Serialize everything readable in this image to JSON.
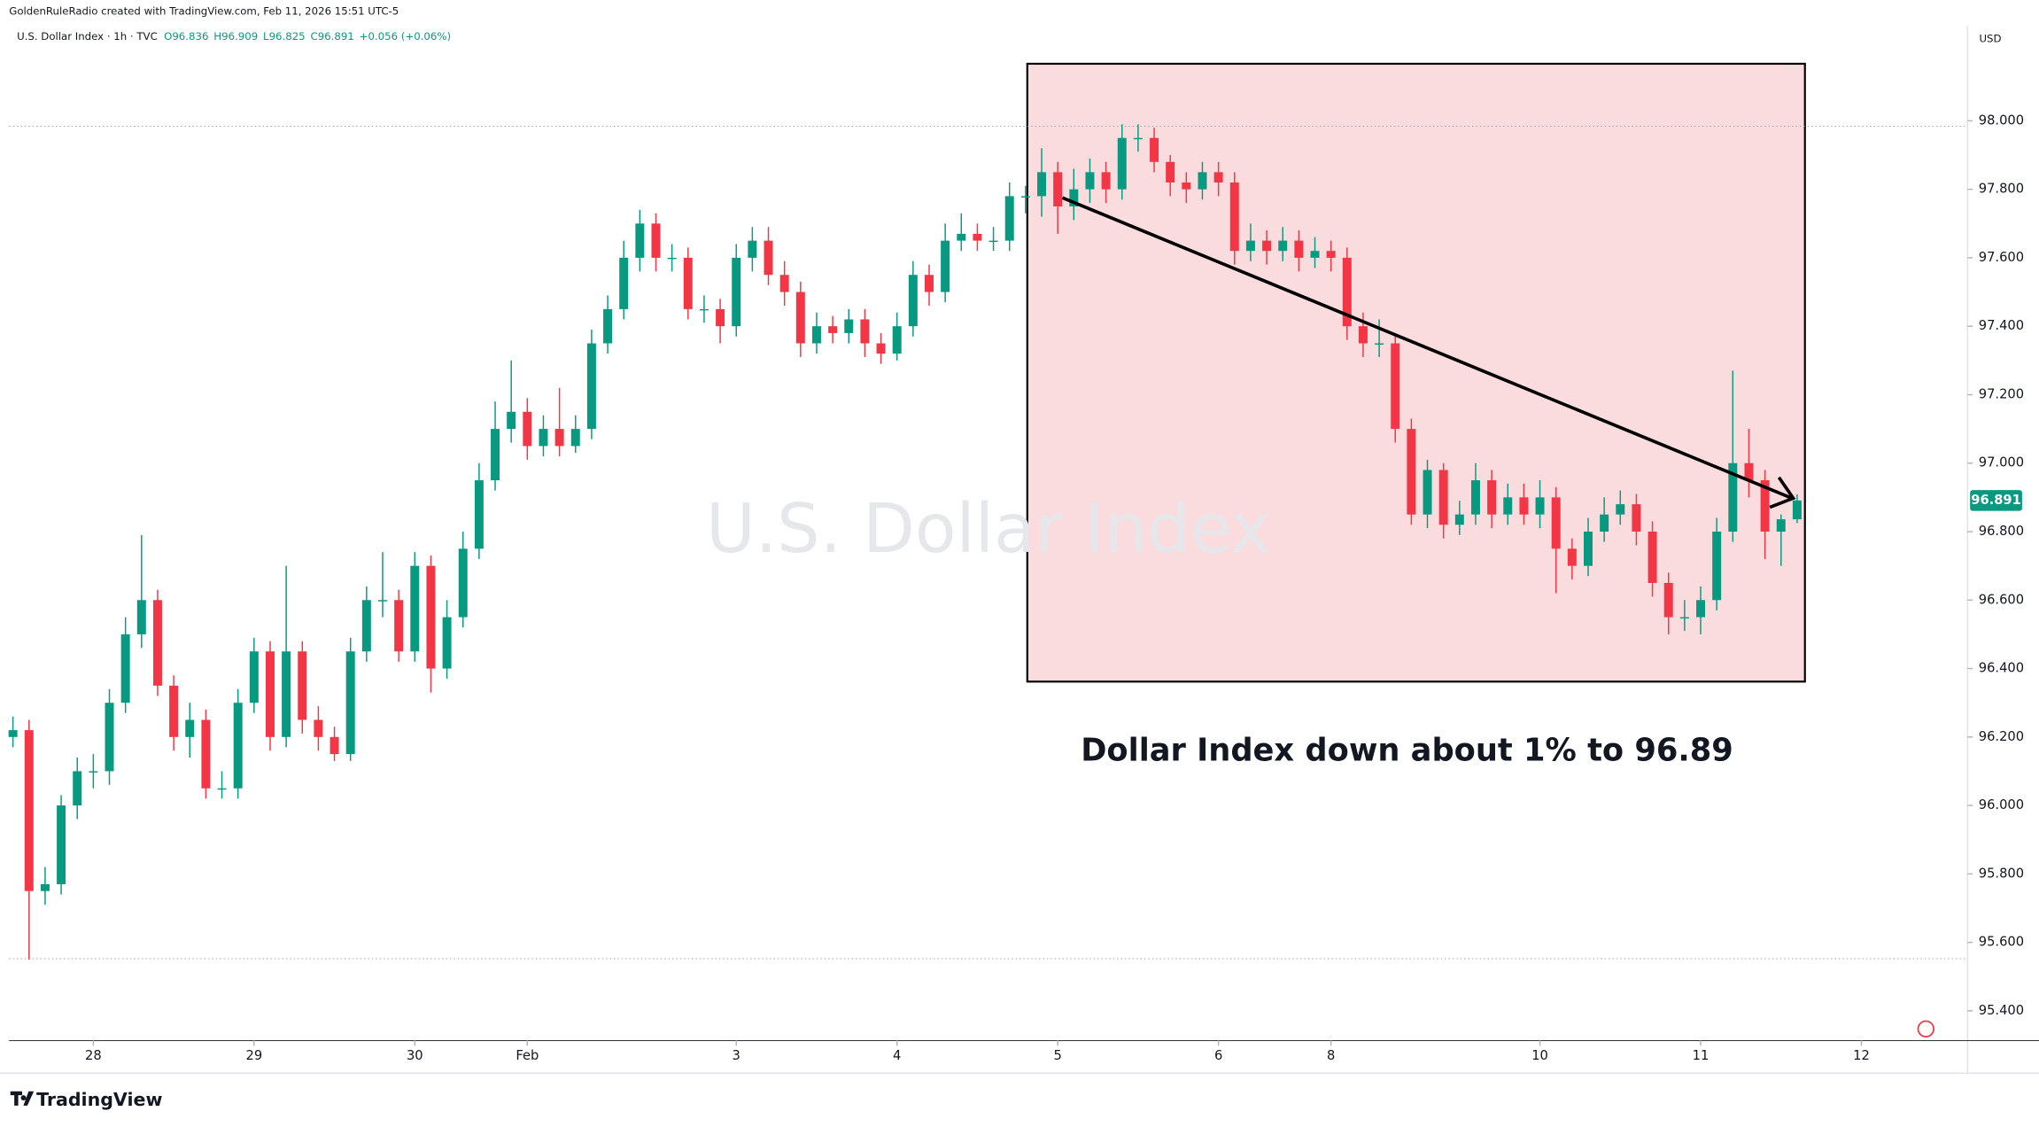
{
  "header": {
    "credit": "GoldenRuleRadio created with TradingView.com, Feb 11, 2026 15:51 UTC-5",
    "symbol": "U.S. Dollar Index · 1h · TVC",
    "ohlc": [
      "O96.836",
      "H96.909",
      "L96.825",
      "C96.891",
      "+0.056 (+0.06%)"
    ],
    "currency": "USD",
    "brand": "TradingView"
  },
  "chart_data": {
    "type": "candlestick",
    "watermark": "U.S. Dollar Index",
    "annotation": "Dollar Index down about 1% to 96.89",
    "up_color": "#089981",
    "down_color": "#f23645",
    "open": [
      96.2,
      96.22,
      95.75,
      95.77,
      96.0,
      96.1,
      96.1,
      96.3,
      96.5,
      96.6,
      96.35,
      96.2,
      96.25,
      96.05,
      96.05,
      96.3,
      96.45,
      96.2,
      96.45,
      96.25,
      96.2,
      96.15,
      96.45,
      96.6,
      96.6,
      96.45,
      96.7,
      96.4,
      96.55,
      96.75,
      96.95,
      97.1,
      97.15,
      97.05,
      97.1,
      97.05,
      97.1,
      97.35,
      97.45,
      97.6,
      97.7,
      97.6,
      97.6,
      97.45,
      97.45,
      97.4,
      97.6,
      97.65,
      97.55,
      97.5,
      97.35,
      97.4,
      97.38,
      97.42,
      97.35,
      97.32,
      97.4,
      97.55,
      97.5,
      97.65,
      97.67,
      97.65,
      97.65,
      97.78,
      97.78,
      97.85,
      97.75,
      97.8,
      97.85,
      97.8,
      97.95,
      97.95,
      97.88,
      97.82,
      97.8,
      97.85,
      97.82,
      97.62,
      97.65,
      97.62,
      97.65,
      97.6,
      97.62,
      97.6,
      97.4,
      97.35,
      97.35,
      97.1,
      96.85,
      96.98,
      96.82,
      96.85,
      96.95,
      96.85,
      96.9,
      96.85,
      96.9,
      96.75,
      96.7,
      96.8,
      96.85,
      96.88,
      96.8,
      96.65,
      96.55,
      96.55,
      96.6,
      96.8,
      97.0,
      96.95,
      96.8,
      96.836
    ],
    "high": [
      96.26,
      96.25,
      95.82,
      96.03,
      96.14,
      96.15,
      96.34,
      96.55,
      96.79,
      96.63,
      96.38,
      96.3,
      96.28,
      96.1,
      96.34,
      96.49,
      96.48,
      96.7,
      96.48,
      96.29,
      96.23,
      96.49,
      96.64,
      96.74,
      96.63,
      96.74,
      96.73,
      96.6,
      96.8,
      97.0,
      97.18,
      97.3,
      97.19,
      97.14,
      97.22,
      97.14,
      97.39,
      97.49,
      97.65,
      97.74,
      97.73,
      97.64,
      97.63,
      97.49,
      97.48,
      97.64,
      97.69,
      97.69,
      97.59,
      97.53,
      97.44,
      97.43,
      97.45,
      97.45,
      97.38,
      97.44,
      97.59,
      97.58,
      97.7,
      97.73,
      97.7,
      97.69,
      97.82,
      97.81,
      97.92,
      97.88,
      97.86,
      97.89,
      97.88,
      97.99,
      97.99,
      97.98,
      97.9,
      97.85,
      97.88,
      97.88,
      97.85,
      97.7,
      97.68,
      97.69,
      97.68,
      97.66,
      97.65,
      97.63,
      97.44,
      97.42,
      97.38,
      97.13,
      97.01,
      97.0,
      96.89,
      97.0,
      96.98,
      96.94,
      96.94,
      96.95,
      96.93,
      96.78,
      96.84,
      96.9,
      96.92,
      96.91,
      96.83,
      96.68,
      96.6,
      96.64,
      96.84,
      97.27,
      97.1,
      96.98,
      96.85,
      96.909
    ],
    "low": [
      96.17,
      95.55,
      95.71,
      95.74,
      95.96,
      96.05,
      96.06,
      96.27,
      96.46,
      96.32,
      96.16,
      96.14,
      96.02,
      96.02,
      96.02,
      96.27,
      96.16,
      96.17,
      96.21,
      96.16,
      96.13,
      96.13,
      96.42,
      96.55,
      96.42,
      96.42,
      96.33,
      96.37,
      96.52,
      96.72,
      96.92,
      97.06,
      97.01,
      97.02,
      97.02,
      97.03,
      97.07,
      97.32,
      97.42,
      97.56,
      97.56,
      97.56,
      97.42,
      97.41,
      97.35,
      97.37,
      97.56,
      97.52,
      97.46,
      97.31,
      97.32,
      97.35,
      97.35,
      97.31,
      97.29,
      97.3,
      97.37,
      97.46,
      97.47,
      97.62,
      97.62,
      97.62,
      97.62,
      97.73,
      97.72,
      97.67,
      97.71,
      97.76,
      97.76,
      97.77,
      97.91,
      97.85,
      97.78,
      97.76,
      97.77,
      97.78,
      97.58,
      97.59,
      97.58,
      97.59,
      97.56,
      97.57,
      97.56,
      97.36,
      97.31,
      97.31,
      97.06,
      96.82,
      96.81,
      96.78,
      96.79,
      96.82,
      96.81,
      96.82,
      96.82,
      96.81,
      96.62,
      96.66,
      96.67,
      96.77,
      96.82,
      96.76,
      96.61,
      96.5,
      96.51,
      96.5,
      96.57,
      96.77,
      96.9,
      96.72,
      96.7,
      96.825
    ],
    "close": [
      96.22,
      95.75,
      95.77,
      96.0,
      96.1,
      96.1,
      96.3,
      96.5,
      96.6,
      96.35,
      96.2,
      96.25,
      96.05,
      96.05,
      96.3,
      96.45,
      96.2,
      96.45,
      96.25,
      96.2,
      96.15,
      96.45,
      96.6,
      96.6,
      96.45,
      96.7,
      96.4,
      96.55,
      96.75,
      96.95,
      97.1,
      97.15,
      97.05,
      97.1,
      97.05,
      97.1,
      97.35,
      97.45,
      97.6,
      97.7,
      97.6,
      97.6,
      97.45,
      97.45,
      97.4,
      97.6,
      97.65,
      97.55,
      97.5,
      97.35,
      97.4,
      97.38,
      97.42,
      97.35,
      97.32,
      97.4,
      97.55,
      97.5,
      97.65,
      97.67,
      97.65,
      97.65,
      97.78,
      97.78,
      97.85,
      97.75,
      97.8,
      97.85,
      97.8,
      97.95,
      97.95,
      97.88,
      97.82,
      97.8,
      97.85,
      97.82,
      97.62,
      97.65,
      97.62,
      97.65,
      97.6,
      97.62,
      97.6,
      97.4,
      97.35,
      97.35,
      97.1,
      96.85,
      96.98,
      96.82,
      96.85,
      96.95,
      96.85,
      96.9,
      96.85,
      96.9,
      96.75,
      96.7,
      96.8,
      96.85,
      96.88,
      96.8,
      96.65,
      96.55,
      96.55,
      96.6,
      96.8,
      97.0,
      96.95,
      96.8,
      96.836,
      96.891
    ],
    "ylim": [
      95.313,
      98.277
    ],
    "yticks": [
      {
        "value": 95.4,
        "label": "95.400"
      },
      {
        "value": 95.6,
        "label": "95.600"
      },
      {
        "value": 95.8,
        "label": "95.800"
      },
      {
        "value": 96.0,
        "label": "96.000"
      },
      {
        "value": 96.2,
        "label": "96.200"
      },
      {
        "value": 96.4,
        "label": "96.400"
      },
      {
        "value": 96.6,
        "label": "96.600"
      },
      {
        "value": 96.8,
        "label": "96.800"
      },
      {
        "value": 97.0,
        "label": "97.000"
      },
      {
        "value": 97.2,
        "label": "97.200"
      },
      {
        "value": 97.4,
        "label": "97.400"
      },
      {
        "value": 97.6,
        "label": "97.600"
      },
      {
        "value": 97.8,
        "label": "97.800"
      },
      {
        "value": 98.0,
        "label": "98.000"
      }
    ],
    "xlim": [
      -0.24,
      121.6
    ],
    "xticks": [
      {
        "value": 5,
        "label": "28"
      },
      {
        "value": 15,
        "label": "29"
      },
      {
        "value": 25,
        "label": "30"
      },
      {
        "value": 32,
        "label": "Feb"
      },
      {
        "value": 45,
        "label": "3"
      },
      {
        "value": 55,
        "label": "4"
      },
      {
        "value": 65,
        "label": "5"
      },
      {
        "value": 75,
        "label": "6"
      },
      {
        "value": 82,
        "label": "8"
      },
      {
        "value": 95,
        "label": "10"
      },
      {
        "value": 105,
        "label": "11"
      },
      {
        "value": 115,
        "label": "12"
      }
    ]
  }
}
